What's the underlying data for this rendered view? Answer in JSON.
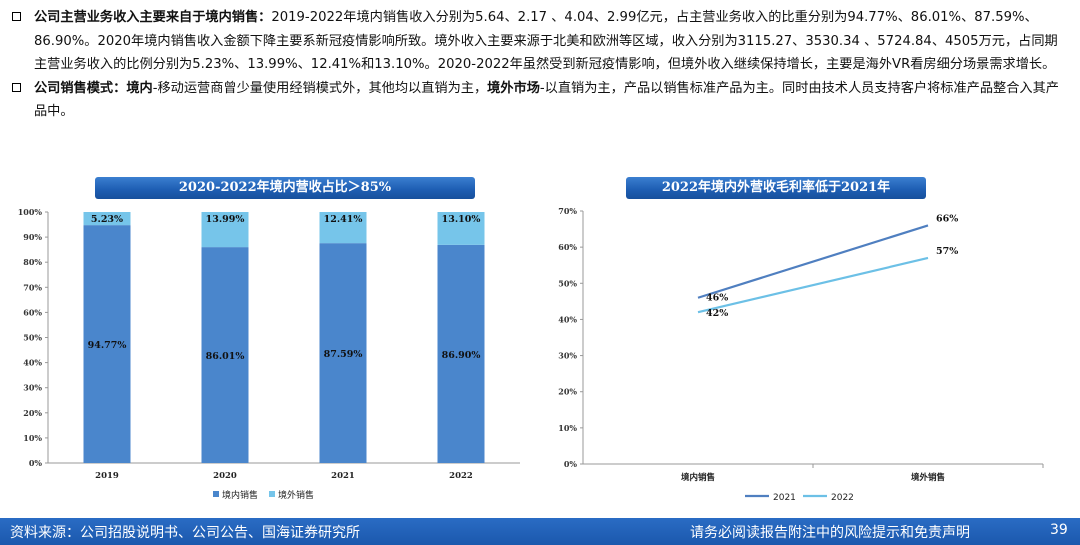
{
  "bullets": [
    {
      "heading": "公司主营业务收入主要来自于境内销售：",
      "text": "2019-2022年境内销售收入分别为5.64、2.17 、4.04、2.99亿元，占主营业务收入的比重分别为94.77%、86.01%、87.59%、86.90%。2020年境内销售收入金额下降主要系新冠疫情影响所致。境外收入主要来源于北美和欧洲等区域，收入分别为3115.27、3530.34 、5724.84、4505万元，占同期主营业务收入的比例分别为5.23%、13.99%、12.41%和13.10%。2020-2022年虽然受到新冠疫情影响，但境外收入继续保持增长，主要是海外VR看房细分场景需求增长。"
    },
    {
      "heading": "公司销售模式：",
      "seg1_bold": "境内",
      "seg2": "-移动运营商曾少量使用经销模式外，其他均以直销为主，",
      "seg3_bold": "境外市场",
      "seg4": "-以直销为主，产品以销售标准产品为主。同时由技术人员支持客户将标准产品整合入其产品中。"
    }
  ],
  "chart_data": [
    {
      "type": "bar",
      "stacked": true,
      "title": "2020-2022年境内营收占比＞85%",
      "categories": [
        "2019",
        "2020",
        "2021",
        "2022"
      ],
      "series": [
        {
          "name": "境内销售",
          "values": [
            94.77,
            86.01,
            87.59,
            86.9
          ],
          "labels": [
            "94.77%",
            "86.01%",
            "87.59%",
            "86.90%"
          ],
          "color": "#4a86cc"
        },
        {
          "name": "境外销售",
          "values": [
            5.23,
            13.99,
            12.41,
            13.1
          ],
          "labels": [
            "5.23%",
            "13.99%",
            "12.41%",
            "13.10%"
          ],
          "color": "#76c5ea"
        }
      ],
      "yticks": [
        "0%",
        "10%",
        "20%",
        "30%",
        "40%",
        "50%",
        "60%",
        "70%",
        "80%",
        "90%",
        "100%"
      ],
      "ylim": [
        0,
        100
      ],
      "grid": false,
      "legend": "bottom"
    },
    {
      "type": "line",
      "title": "2022年境内外营收毛利率低于2021年",
      "categories": [
        "境内销售",
        "境外销售"
      ],
      "series": [
        {
          "name": "2021",
          "values": [
            46,
            66
          ],
          "labels": [
            "46%",
            "66%"
          ],
          "color": "#4f7fc0"
        },
        {
          "name": "2022",
          "values": [
            42,
            57
          ],
          "labels": [
            "42%",
            "57%"
          ],
          "color": "#6cc0e6"
        }
      ],
      "yticks": [
        "0%",
        "10%",
        "20%",
        "30%",
        "40%",
        "50%",
        "60%",
        "70%"
      ],
      "ylim": [
        0,
        70
      ],
      "grid": false,
      "legend": "bottom"
    }
  ],
  "footer": {
    "source": "资料来源：公司招股说明书、公司公告、国海证券研究所",
    "disclaimer": "请务必阅读报告附注中的风险提示和免责声明",
    "page": "39"
  }
}
